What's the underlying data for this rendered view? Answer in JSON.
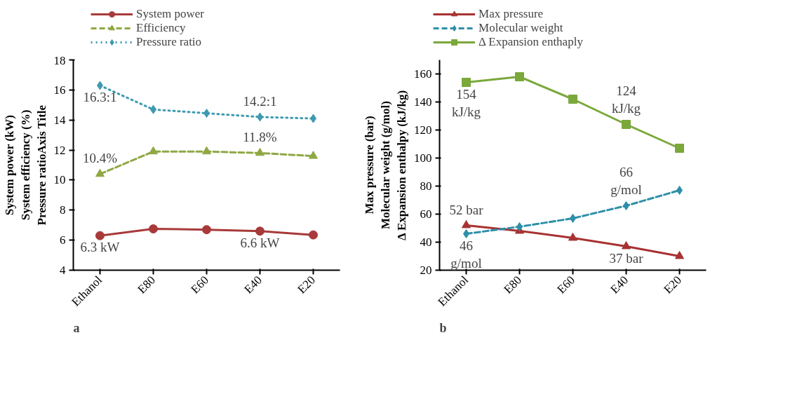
{
  "chart_data": [
    {
      "type": "line",
      "categories": [
        "Ethanol",
        "E80",
        "E60",
        "E40",
        "E20"
      ],
      "ylabel": "System power (kW)\nSystem efficiency (%)\nPressure ratioAxis Title",
      "ylim": [
        4,
        18
      ],
      "yticks": [
        4,
        6,
        8,
        10,
        12,
        14,
        16,
        18
      ],
      "grid": false,
      "legend": "top",
      "annotations": [
        "a",
        {
          "text": "16.3:1",
          "x": "Ethanol",
          "y": 16.3
        },
        {
          "text": "14.2:1",
          "x": "E40",
          "y": 14.2
        },
        {
          "text": "10.4%",
          "x": "Ethanol",
          "y": 10.4
        },
        {
          "text": "11.8%",
          "x": "E40",
          "y": 11.8
        },
        {
          "text": "6.3 kW",
          "x": "Ethanol",
          "y": 6.3
        },
        {
          "text": "6.6 kW",
          "x": "E40",
          "y": 6.6
        }
      ],
      "series": [
        {
          "name": "System power",
          "color": "#a83a3a",
          "marker": "circle",
          "line_style": "solid",
          "values": [
            6.3,
            6.75,
            6.7,
            6.6,
            6.35
          ]
        },
        {
          "name": "Efficiency",
          "color": "#8fa843",
          "marker": "triangle",
          "line_style": "dashed",
          "values": [
            10.4,
            11.9,
            11.9,
            11.8,
            11.6
          ]
        },
        {
          "name": "Pressure ratio",
          "color": "#3d9ab0",
          "marker": "diamond",
          "line_style": "dotted",
          "values": [
            16.3,
            14.7,
            14.45,
            14.2,
            14.1
          ]
        }
      ]
    },
    {
      "type": "line",
      "categories": [
        "Ethanol",
        "E80",
        "E60",
        "E40",
        "E20"
      ],
      "ylabel": "Max pressure (bar)\nMolecular weight (g/mol)\nΔ Expansion enthalpy (kJ/kg)",
      "ylim": [
        20,
        170
      ],
      "yticks": [
        20,
        40,
        60,
        80,
        100,
        120,
        140,
        160
      ],
      "grid": false,
      "legend": "top",
      "annotations": [
        "b",
        {
          "text": "154\nkJ/kg",
          "x": "Ethanol",
          "y": 154
        },
        {
          "text": "124\nkJ/kg",
          "x": "E40",
          "y": 124
        },
        {
          "text": "66\ng/mol",
          "x": "E40",
          "y": 66
        },
        {
          "text": "46\ng/mol",
          "x": "Ethanol",
          "y": 46
        },
        {
          "text": "52 bar",
          "x": "Ethanol",
          "y": 52
        },
        {
          "text": "37 bar",
          "x": "E40",
          "y": 37
        }
      ],
      "series": [
        {
          "name": "Max pressure",
          "color": "#a83232",
          "marker": "triangle",
          "line_style": "solid",
          "values": [
            52,
            48,
            43,
            37,
            30
          ]
        },
        {
          "name": "Molecular weight",
          "color": "#2e8fa8",
          "marker": "diamond",
          "line_style": "dashed",
          "values": [
            46,
            51,
            57,
            66,
            77
          ]
        },
        {
          "name": "Δ Expansion enthaply",
          "color": "#7aa83a",
          "marker": "square",
          "line_style": "solid",
          "values": [
            154,
            158,
            142,
            124,
            107
          ]
        }
      ]
    }
  ]
}
